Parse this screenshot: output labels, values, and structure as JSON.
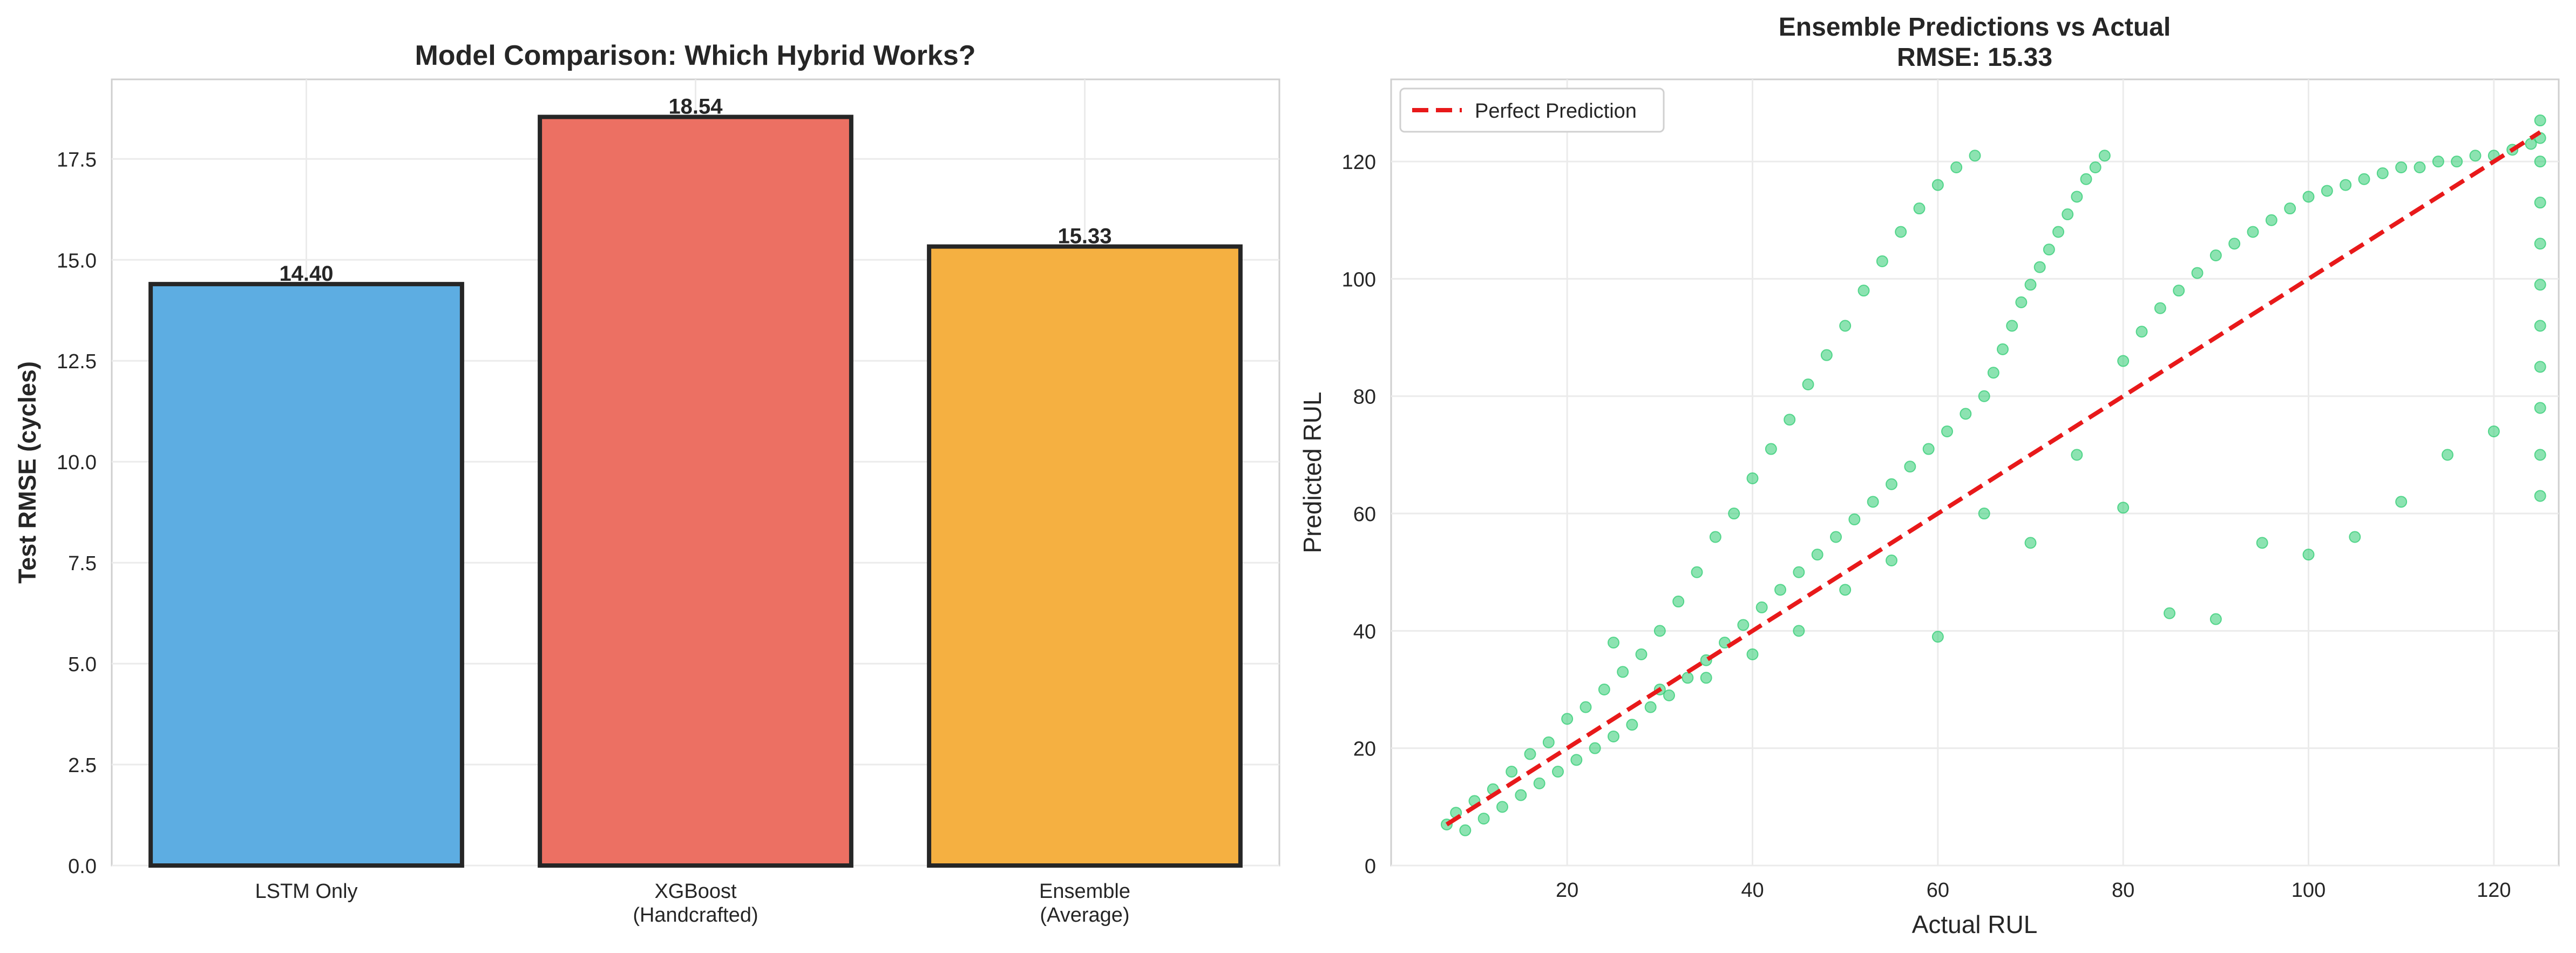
{
  "chart_data": [
    {
      "type": "bar",
      "title": "Model Comparison: Which Hybrid Works?",
      "xlabel": "",
      "ylabel": "Test RMSE (cycles)",
      "ylim": [
        0,
        19.47
      ],
      "yticks": [
        "0.0",
        "2.5",
        "5.0",
        "7.5",
        "10.0",
        "12.5",
        "15.0",
        "17.5"
      ],
      "categories": [
        [
          "LSTM Only"
        ],
        [
          "XGBoost",
          "(Handcrafted)"
        ],
        [
          "Ensemble",
          "(Average)"
        ]
      ],
      "values": [
        14.4,
        18.54,
        15.33
      ],
      "value_labels": [
        "14.40",
        "18.54",
        "15.33"
      ],
      "colors": [
        "#5DADE2",
        "#EC7063",
        "#F5B041"
      ],
      "grid": true
    },
    {
      "type": "scatter",
      "title": "Ensemble Predictions vs Actual",
      "subtitle": "RMSE: 15.33",
      "xlabel": "Actual RUL",
      "ylabel": "Predicted RUL",
      "xlim": [
        1,
        127
      ],
      "ylim": [
        0,
        134
      ],
      "xticks": [
        "20",
        "40",
        "60",
        "80",
        "100",
        "120"
      ],
      "yticks": [
        "0",
        "20",
        "40",
        "60",
        "80",
        "100",
        "120"
      ],
      "legend": {
        "position": "top-left",
        "entries": [
          "Perfect Prediction"
        ]
      },
      "reference_line": {
        "name": "Perfect Prediction",
        "x": [
          7,
          125
        ],
        "y": [
          7,
          125
        ],
        "color": "#E8191A"
      },
      "point_color": "#2ECC71",
      "points": [
        [
          7,
          7
        ],
        [
          8,
          9
        ],
        [
          9,
          6
        ],
        [
          10,
          11
        ],
        [
          11,
          8
        ],
        [
          12,
          13
        ],
        [
          13,
          10
        ],
        [
          14,
          16
        ],
        [
          15,
          12
        ],
        [
          16,
          19
        ],
        [
          17,
          14
        ],
        [
          18,
          21
        ],
        [
          19,
          16
        ],
        [
          20,
          25
        ],
        [
          21,
          18
        ],
        [
          22,
          27
        ],
        [
          23,
          20
        ],
        [
          24,
          30
        ],
        [
          25,
          22
        ],
        [
          26,
          33
        ],
        [
          27,
          24
        ],
        [
          28,
          36
        ],
        [
          29,
          27
        ],
        [
          30,
          40
        ],
        [
          31,
          29
        ],
        [
          32,
          45
        ],
        [
          33,
          32
        ],
        [
          34,
          50
        ],
        [
          35,
          35
        ],
        [
          36,
          56
        ],
        [
          37,
          38
        ],
        [
          38,
          60
        ],
        [
          39,
          41
        ],
        [
          40,
          66
        ],
        [
          41,
          44
        ],
        [
          42,
          71
        ],
        [
          43,
          47
        ],
        [
          44,
          76
        ],
        [
          45,
          50
        ],
        [
          46,
          82
        ],
        [
          47,
          53
        ],
        [
          48,
          87
        ],
        [
          49,
          56
        ],
        [
          50,
          92
        ],
        [
          51,
          59
        ],
        [
          52,
          98
        ],
        [
          53,
          62
        ],
        [
          54,
          103
        ],
        [
          55,
          65
        ],
        [
          56,
          108
        ],
        [
          57,
          68
        ],
        [
          58,
          112
        ],
        [
          59,
          71
        ],
        [
          60,
          116
        ],
        [
          61,
          74
        ],
        [
          62,
          119
        ],
        [
          63,
          77
        ],
        [
          64,
          121
        ],
        [
          65,
          80
        ],
        [
          66,
          84
        ],
        [
          67,
          88
        ],
        [
          68,
          92
        ],
        [
          69,
          96
        ],
        [
          70,
          99
        ],
        [
          71,
          102
        ],
        [
          72,
          105
        ],
        [
          73,
          108
        ],
        [
          74,
          111
        ],
        [
          75,
          114
        ],
        [
          76,
          117
        ],
        [
          77,
          119
        ],
        [
          78,
          121
        ],
        [
          80,
          86
        ],
        [
          82,
          91
        ],
        [
          84,
          95
        ],
        [
          86,
          98
        ],
        [
          88,
          101
        ],
        [
          90,
          104
        ],
        [
          92,
          106
        ],
        [
          94,
          108
        ],
        [
          96,
          110
        ],
        [
          98,
          112
        ],
        [
          100,
          114
        ],
        [
          102,
          115
        ],
        [
          104,
          116
        ],
        [
          106,
          117
        ],
        [
          108,
          118
        ],
        [
          110,
          119
        ],
        [
          112,
          119
        ],
        [
          114,
          120
        ],
        [
          116,
          120
        ],
        [
          118,
          121
        ],
        [
          120,
          121
        ],
        [
          122,
          122
        ],
        [
          124,
          123
        ],
        [
          125,
          124
        ],
        [
          125,
          63
        ],
        [
          125,
          70
        ],
        [
          125,
          78
        ],
        [
          125,
          85
        ],
        [
          125,
          92
        ],
        [
          125,
          99
        ],
        [
          125,
          106
        ],
        [
          125,
          113
        ],
        [
          125,
          120
        ],
        [
          125,
          127
        ],
        [
          25,
          38
        ],
        [
          30,
          30
        ],
        [
          35,
          32
        ],
        [
          40,
          36
        ],
        [
          45,
          40
        ],
        [
          50,
          47
        ],
        [
          55,
          52
        ],
        [
          60,
          39
        ],
        [
          65,
          60
        ],
        [
          70,
          55
        ],
        [
          75,
          70
        ],
        [
          80,
          61
        ],
        [
          85,
          43
        ],
        [
          90,
          42
        ],
        [
          95,
          55
        ],
        [
          100,
          53
        ],
        [
          105,
          56
        ],
        [
          110,
          62
        ],
        [
          115,
          70
        ],
        [
          120,
          74
        ]
      ],
      "grid": true
    }
  ]
}
